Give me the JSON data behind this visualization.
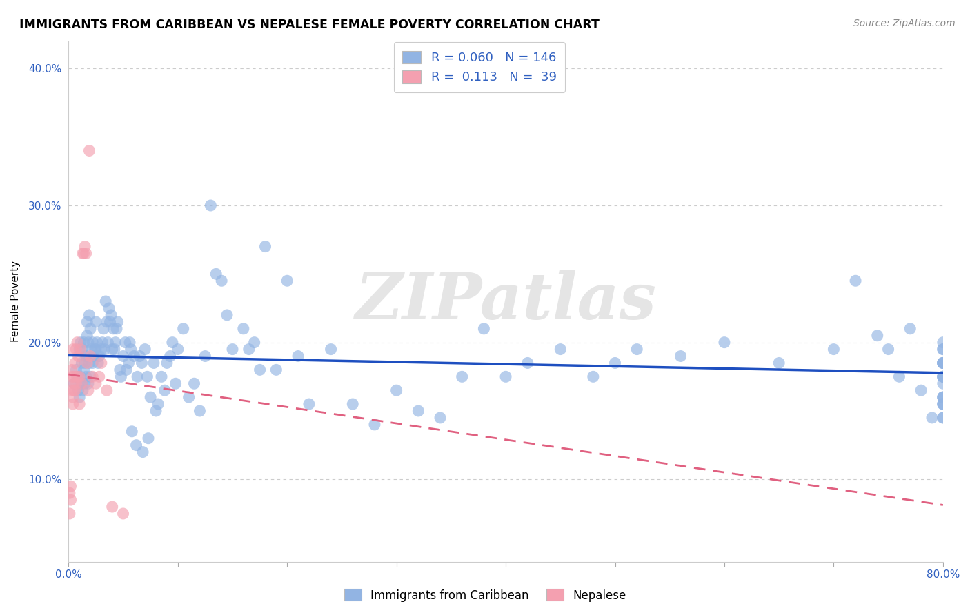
{
  "title": "IMMIGRANTS FROM CARIBBEAN VS NEPALESE FEMALE POVERTY CORRELATION CHART",
  "source": "Source: ZipAtlas.com",
  "ylabel": "Female Poverty",
  "watermark": "ZIPatlas",
  "R_blue": 0.06,
  "N_blue": 146,
  "R_pink": 0.113,
  "N_pink": 39,
  "xlim": [
    0.0,
    0.8
  ],
  "ylim": [
    0.04,
    0.42
  ],
  "blue_color": "#92B4E3",
  "pink_color": "#F4A0B0",
  "blue_line_color": "#1E4FC0",
  "pink_line_color": "#E06080",
  "legend_blue_label": "Immigrants from Caribbean",
  "legend_pink_label": "Nepalese",
  "blue_scatter_x": [
    0.005,
    0.007,
    0.008,
    0.009,
    0.01,
    0.01,
    0.011,
    0.011,
    0.012,
    0.012,
    0.013,
    0.013,
    0.014,
    0.014,
    0.015,
    0.015,
    0.016,
    0.016,
    0.017,
    0.017,
    0.018,
    0.018,
    0.019,
    0.019,
    0.02,
    0.02,
    0.021,
    0.022,
    0.022,
    0.023,
    0.024,
    0.025,
    0.025,
    0.026,
    0.027,
    0.028,
    0.03,
    0.031,
    0.032,
    0.033,
    0.034,
    0.035,
    0.036,
    0.037,
    0.038,
    0.039,
    0.04,
    0.041,
    0.042,
    0.043,
    0.044,
    0.045,
    0.047,
    0.048,
    0.05,
    0.052,
    0.053,
    0.055,
    0.056,
    0.057,
    0.058,
    0.06,
    0.062,
    0.063,
    0.065,
    0.067,
    0.068,
    0.07,
    0.072,
    0.073,
    0.075,
    0.078,
    0.08,
    0.082,
    0.085,
    0.088,
    0.09,
    0.093,
    0.095,
    0.098,
    0.1,
    0.105,
    0.11,
    0.115,
    0.12,
    0.125,
    0.13,
    0.135,
    0.14,
    0.145,
    0.15,
    0.16,
    0.165,
    0.17,
    0.175,
    0.18,
    0.19,
    0.2,
    0.21,
    0.22,
    0.24,
    0.26,
    0.28,
    0.3,
    0.32,
    0.34,
    0.36,
    0.38,
    0.4,
    0.42,
    0.45,
    0.48,
    0.5,
    0.52,
    0.56,
    0.6,
    0.65,
    0.7,
    0.72,
    0.74,
    0.75,
    0.76,
    0.77,
    0.78,
    0.79,
    0.8,
    0.8,
    0.8,
    0.8,
    0.8,
    0.8,
    0.8,
    0.8,
    0.8,
    0.8,
    0.8,
    0.8,
    0.8,
    0.8,
    0.8,
    0.8,
    0.8,
    0.8,
    0.8,
    0.8,
    0.8
  ],
  "blue_scatter_y": [
    0.17,
    0.18,
    0.175,
    0.165,
    0.16,
    0.195,
    0.175,
    0.2,
    0.17,
    0.185,
    0.165,
    0.195,
    0.2,
    0.18,
    0.17,
    0.185,
    0.175,
    0.19,
    0.205,
    0.215,
    0.17,
    0.2,
    0.185,
    0.22,
    0.21,
    0.175,
    0.195,
    0.2,
    0.185,
    0.19,
    0.195,
    0.215,
    0.195,
    0.2,
    0.185,
    0.19,
    0.195,
    0.2,
    0.21,
    0.195,
    0.23,
    0.215,
    0.2,
    0.225,
    0.215,
    0.22,
    0.195,
    0.21,
    0.195,
    0.2,
    0.21,
    0.215,
    0.18,
    0.175,
    0.19,
    0.2,
    0.18,
    0.185,
    0.2,
    0.195,
    0.135,
    0.19,
    0.125,
    0.175,
    0.19,
    0.185,
    0.12,
    0.195,
    0.175,
    0.13,
    0.16,
    0.185,
    0.15,
    0.155,
    0.175,
    0.165,
    0.185,
    0.19,
    0.2,
    0.17,
    0.195,
    0.21,
    0.16,
    0.17,
    0.15,
    0.19,
    0.3,
    0.25,
    0.245,
    0.22,
    0.195,
    0.21,
    0.195,
    0.2,
    0.18,
    0.27,
    0.18,
    0.245,
    0.19,
    0.155,
    0.195,
    0.155,
    0.14,
    0.165,
    0.15,
    0.145,
    0.175,
    0.21,
    0.175,
    0.185,
    0.195,
    0.175,
    0.185,
    0.195,
    0.19,
    0.2,
    0.185,
    0.195,
    0.245,
    0.205,
    0.195,
    0.175,
    0.21,
    0.165,
    0.145,
    0.155,
    0.16,
    0.175,
    0.185,
    0.2,
    0.195,
    0.185,
    0.155,
    0.17,
    0.145,
    0.16,
    0.175,
    0.185,
    0.195,
    0.175,
    0.185,
    0.16,
    0.145,
    0.155,
    0.175,
    0.185
  ],
  "pink_scatter_x": [
    0.001,
    0.001,
    0.002,
    0.002,
    0.003,
    0.003,
    0.003,
    0.004,
    0.004,
    0.004,
    0.005,
    0.005,
    0.005,
    0.006,
    0.006,
    0.007,
    0.007,
    0.008,
    0.008,
    0.009,
    0.01,
    0.01,
    0.011,
    0.012,
    0.013,
    0.014,
    0.015,
    0.016,
    0.017,
    0.018,
    0.019,
    0.02,
    0.022,
    0.025,
    0.028,
    0.03,
    0.035,
    0.04,
    0.05
  ],
  "pink_scatter_y": [
    0.075,
    0.09,
    0.085,
    0.095,
    0.165,
    0.175,
    0.18,
    0.155,
    0.16,
    0.195,
    0.165,
    0.17,
    0.175,
    0.165,
    0.185,
    0.17,
    0.195,
    0.175,
    0.2,
    0.19,
    0.175,
    0.155,
    0.195,
    0.17,
    0.265,
    0.265,
    0.27,
    0.265,
    0.185,
    0.165,
    0.34,
    0.19,
    0.175,
    0.17,
    0.175,
    0.185,
    0.165,
    0.08,
    0.075
  ]
}
